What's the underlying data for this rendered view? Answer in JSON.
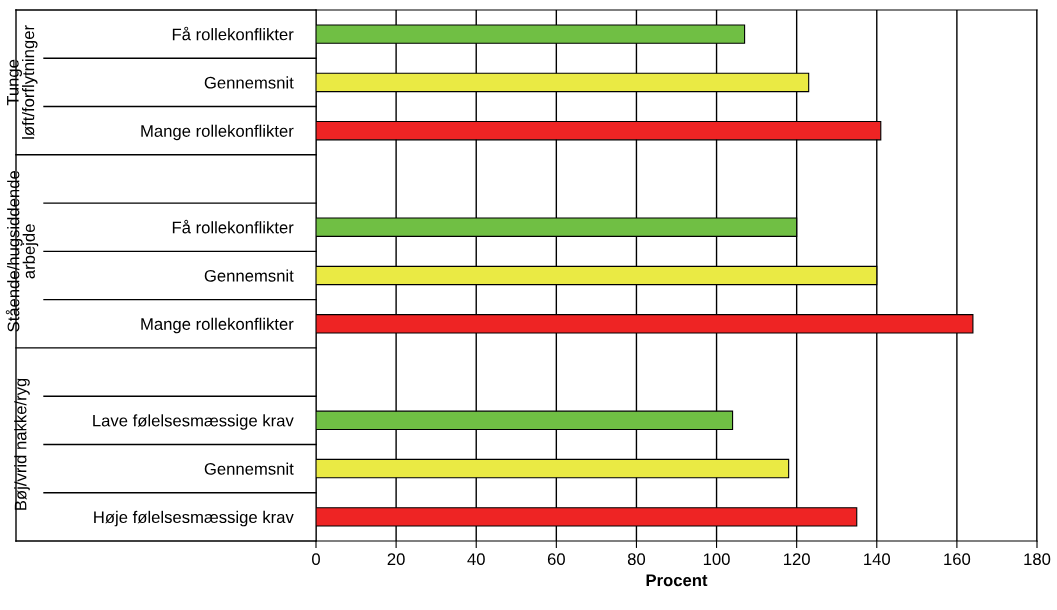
{
  "chart_data": {
    "type": "bar",
    "orientation": "horizontal",
    "xlabel": "Procent",
    "categories": [
      "Få rollekonflikter",
      "Gennemsnit",
      "Mange rollekonflikter",
      null,
      "Få rollekonflikter",
      "Gennemsnit",
      "Mange rollekonflikter",
      null,
      "Lave følelsesmæssige krav",
      "Gennemsnit",
      "Høje følelsesmæssige krav"
    ],
    "values": [
      107,
      123,
      141,
      null,
      120,
      140,
      164,
      null,
      104,
      118,
      135
    ],
    "colors": [
      "#70bf44",
      "#eaea44",
      "#ee2424",
      "#ffffff",
      "#70bf44",
      "#eaea44",
      "#ee2424",
      "#ffffff",
      "#70bf44",
      "#eaea44",
      "#ee2424"
    ],
    "annotations": [
      "Tunge\nløft/forflytninger",
      "Stående/hugsiddende\narbejde",
      "Bøj/vrid nakke/ryg"
    ],
    "xlim": [
      0,
      180
    ],
    "xticks": [
      0,
      20,
      40,
      60,
      80,
      100,
      120,
      140,
      160,
      180
    ],
    "grid": "x",
    "legend": false
  }
}
